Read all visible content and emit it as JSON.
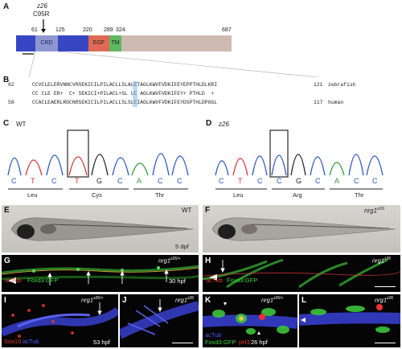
{
  "panelA": {
    "label": "A",
    "mutation_name": "z26",
    "mutation_site": "C95R",
    "positions": [
      "61",
      "125",
      "220",
      "289",
      "324",
      "687"
    ],
    "domains": {
      "crd": "CRD",
      "egf": "EGF",
      "tm": "TM"
    },
    "colors": {
      "blue": "#3747c4",
      "crd": "#8e96cf",
      "egf": "#e06a55",
      "tm": "#5db85f",
      "tail": "#cdbab2"
    }
  },
  "panelB": {
    "label": "B",
    "rows": [
      {
        "start": "62",
        "seq": "CCVCLELERVNNCVRSEKICILPILACLLSLALCTAGLKWVFVDKIFEYEPPTHLDLKRI",
        "end": "121",
        "species": "zebrafish"
      },
      {
        "start": "",
        "seq": "CC CLE ER+  C+ SEKICI+PILACL+SL LC AGLKWVFVDKIFEY+ PTHLD  +",
        "end": "",
        "species": ""
      },
      {
        "start": "58",
        "seq": "CCACLEAERLRGCNRSEKICILPILACLLSLSLCIAGLKWVFVDKIFEYDSPTHLDPGGL",
        "end": "117",
        "species": "human"
      }
    ]
  },
  "panelC": {
    "label": "C",
    "title": "WT",
    "bases": [
      "C",
      "T",
      "C",
      "T",
      "G",
      "C",
      "A",
      "C",
      "C"
    ],
    "codons": [
      "Leu",
      "Cys",
      "Thr"
    ]
  },
  "panelD": {
    "label": "D",
    "title": "z26",
    "bases": [
      "C",
      "T",
      "C",
      "C",
      "G",
      "C",
      "A",
      "C",
      "C"
    ],
    "codons": [
      "Leu",
      "Arg",
      "Thr"
    ]
  },
  "panelE": {
    "label": "E",
    "genotype": "WT",
    "stage": "5 dpf"
  },
  "panelF": {
    "label": "F",
    "genotype": "nrg1",
    "superscript": "z26"
  },
  "panelG": {
    "label": "G",
    "genotype": "nrg1",
    "superscript": "z26/+",
    "stain1": "acTub",
    "stain2": "Foxd3:GFP",
    "stage": "30 hpf"
  },
  "panelH": {
    "label": "H",
    "genotype": "nrg1",
    "superscript": "z26",
    "stain1": "acTub",
    "stain2": "Foxd3:GFP"
  },
  "panelI": {
    "label": "I",
    "genotype": "nrg1",
    "superscript": "z26/+",
    "stain1": "Sox10",
    "stain2": "acTub",
    "stage": "53 hpf"
  },
  "panelJ": {
    "label": "J",
    "genotype": "nrg1",
    "superscript": "z26"
  },
  "panelK": {
    "label": "K",
    "genotype": "nrg1",
    "superscript": "z26/+",
    "stain1": "acTub",
    "stain2": "Foxd3:GFP",
    "stain3": "pH3",
    "stage": "26 hpf"
  },
  "panelL": {
    "label": "L",
    "genotype": "nrg1",
    "superscript": "z26"
  }
}
